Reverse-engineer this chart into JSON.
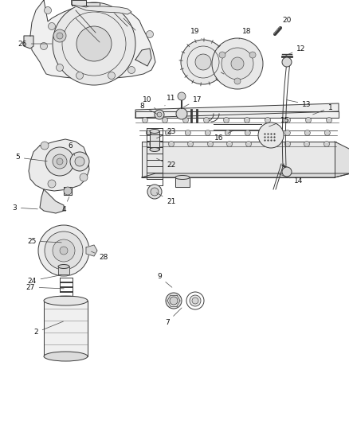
{
  "background_color": "#ffffff",
  "line_color": "#3a3a3a",
  "label_color": "#000000",
  "lw": 0.7,
  "figsize": [
    4.38,
    5.33
  ],
  "dpi": 100
}
